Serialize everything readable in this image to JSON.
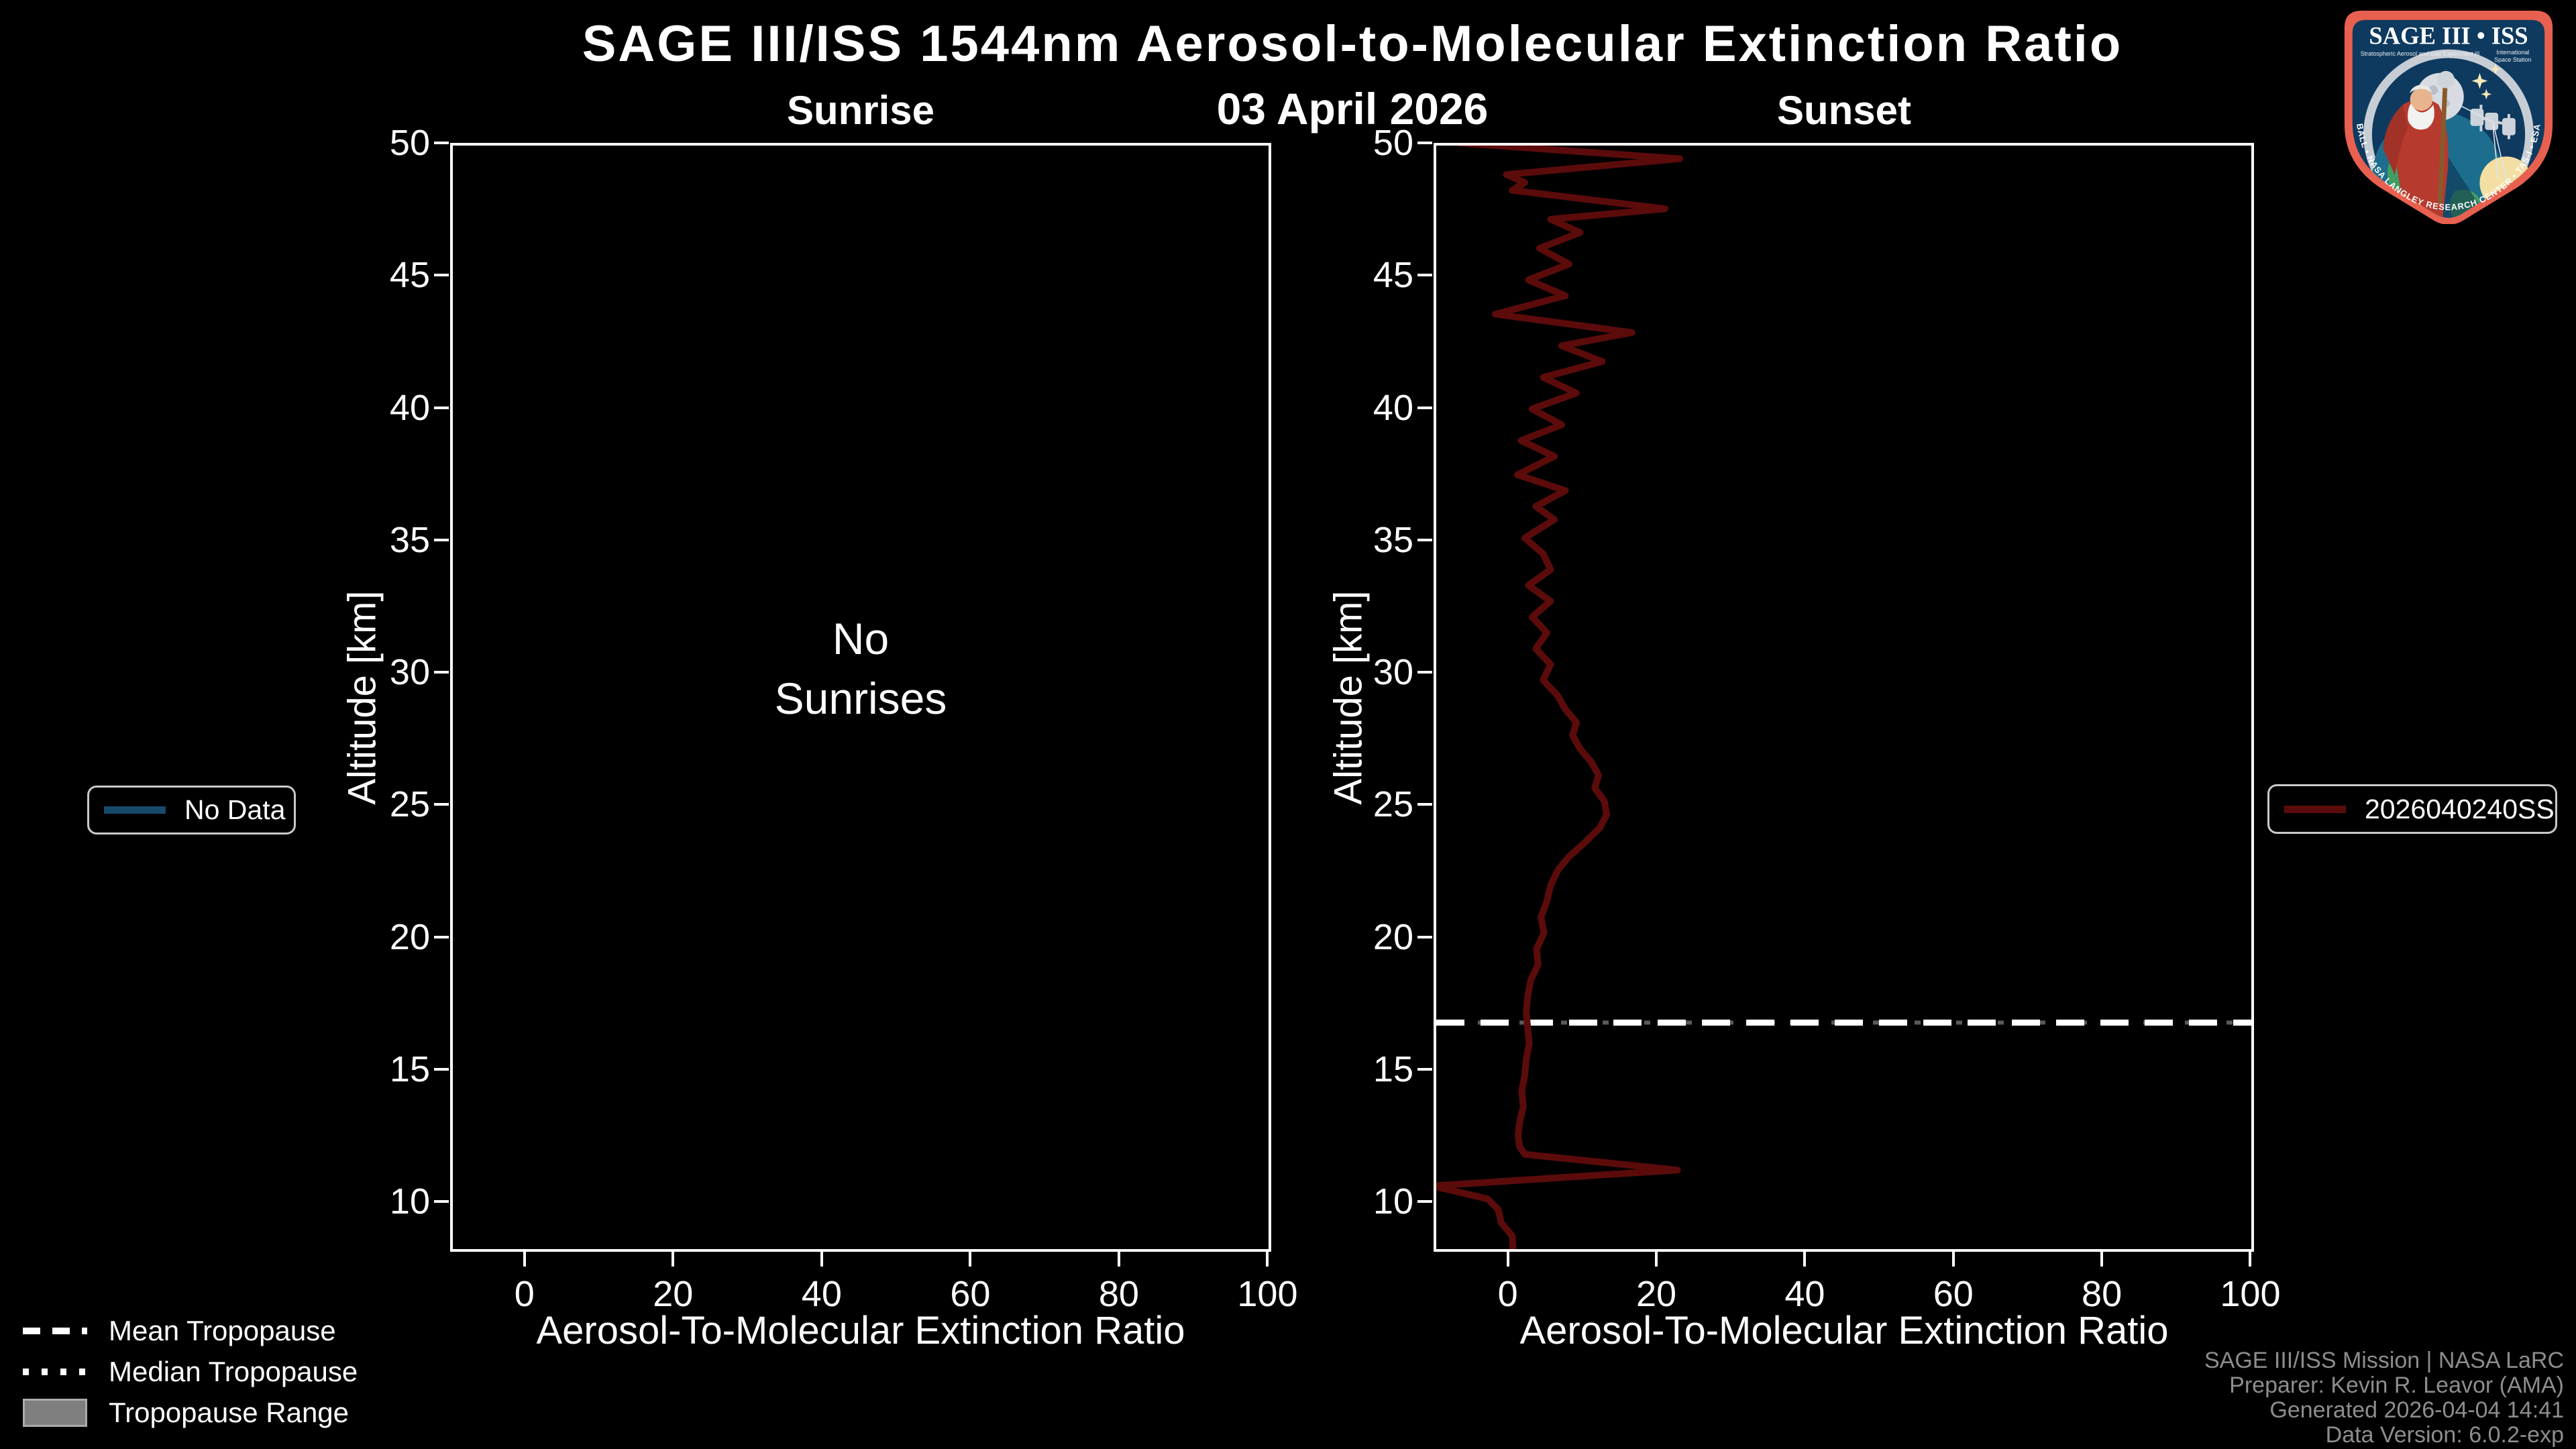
{
  "title": "SAGE III/ISS 1544nm Aerosol-to-Molecular Extinction Ratio",
  "date": "03 April 2026",
  "panels": {
    "sunrise": {
      "title": "Sunrise",
      "no_data_lines": [
        "No",
        "Sunrises"
      ]
    },
    "sunset": {
      "title": "Sunset"
    }
  },
  "axes": {
    "xlabel": "Aerosol-To-Molecular Extinction Ratio",
    "ylabel": "Altitude [km]",
    "xticks": [
      0,
      20,
      40,
      60,
      80,
      100
    ],
    "yticks": [
      10,
      15,
      20,
      25,
      30,
      35,
      40,
      45,
      50
    ],
    "xlim": [
      -10,
      100.5
    ],
    "ylim": [
      8.1,
      50
    ]
  },
  "legends": {
    "no_data": {
      "label": "No Data",
      "line_color": "#17496b"
    },
    "event": {
      "label": "2026040240SS",
      "line_color": "#5c0b0b"
    },
    "tropopause": [
      {
        "label": "Mean Tropopause",
        "style": "dashed"
      },
      {
        "label": "Median Tropopause",
        "style": "dotted"
      },
      {
        "label": "Tropopause Range",
        "style": "box"
      }
    ]
  },
  "footer": {
    "lines": [
      "SAGE III/ISS Mission | NASA LaRC",
      "Preparer: Kevin R. Leavor (AMA)",
      "Generated 2026-04-04 14:41",
      "Data Version: 6.0.2-exp"
    ]
  },
  "logo": {
    "title": "SAGE III • ISS",
    "subtitle_left": "Stratospheric Aerosol and Gas Experiment III",
    "subtitle_right_1": "International",
    "subtitle_right_2": "Space Station",
    "ring_text": "BALL • NASA LANGLEY RESEARCH CENTER • TAS-I • ESA"
  },
  "chart_data": {
    "type": "line",
    "title": "SAGE III/ISS 1544nm Aerosol-to-Molecular Extinction Ratio",
    "date": "03 April 2026",
    "xlabel": "Aerosol-To-Molecular Extinction Ratio",
    "ylabel": "Altitude [km]",
    "xlim": [
      -10,
      100.5
    ],
    "ylim": [
      8.1,
      50
    ],
    "xticks": [
      0,
      20,
      40,
      60,
      80,
      100
    ],
    "yticks": [
      10,
      15,
      20,
      25,
      30,
      35,
      40,
      45,
      50
    ],
    "grid": false,
    "panels": [
      {
        "name": "Sunrise",
        "annotation": "No Sunrises",
        "series": []
      },
      {
        "name": "Sunset",
        "mean_tropopause_km": 16.7,
        "series": [
          {
            "name": "2026040240SS",
            "color": "#5c0b0b",
            "points_format": "[extinction_ratio, altitude_km]",
            "points": [
              [
                -7,
                50.1
              ],
              [
                23,
                49.5
              ],
              [
                -0.5,
                48.9
              ],
              [
                2,
                48.6
              ],
              [
                0.3,
                48.3
              ],
              [
                21,
                47.6
              ],
              [
                5.5,
                47.2
              ],
              [
                9.5,
                46.7
              ],
              [
                4,
                46.1
              ],
              [
                8,
                45.5
              ],
              [
                2.5,
                44.9
              ],
              [
                7.5,
                44.3
              ],
              [
                -2,
                43.6
              ],
              [
                16.5,
                42.9
              ],
              [
                7,
                42.4
              ],
              [
                12.5,
                41.8
              ],
              [
                4.5,
                41.2
              ],
              [
                9,
                40.6
              ],
              [
                3,
                40
              ],
              [
                7,
                39.4
              ],
              [
                1.5,
                38.8
              ],
              [
                6,
                38.2
              ],
              [
                1,
                37.5
              ],
              [
                7.5,
                36.9
              ],
              [
                3.5,
                36.3
              ],
              [
                6,
                35.8
              ],
              [
                2,
                35.1
              ],
              [
                4.5,
                34.5
              ],
              [
                5.5,
                33.9
              ],
              [
                2.5,
                33.3
              ],
              [
                5.5,
                32.7
              ],
              [
                3,
                32.1
              ],
              [
                5,
                31.5
              ],
              [
                3.5,
                30.9
              ],
              [
                5.5,
                30.3
              ],
              [
                4.5,
                29.7
              ],
              [
                6.5,
                29.1
              ],
              [
                7.5,
                28.6
              ],
              [
                9,
                28.1
              ],
              [
                8.5,
                27.6
              ],
              [
                9.5,
                27.1
              ],
              [
                11,
                26.6
              ],
              [
                12,
                26.1
              ],
              [
                11.5,
                25.6
              ],
              [
                12.8,
                25.1
              ],
              [
                13.1,
                24.6
              ],
              [
                12.2,
                24.1
              ],
              [
                10,
                23.5
              ],
              [
                8,
                23
              ],
              [
                6.5,
                22.5
              ],
              [
                5.5,
                21.9
              ],
              [
                5,
                21.3
              ],
              [
                4.2,
                20.7
              ],
              [
                4.6,
                20.1
              ],
              [
                3.6,
                19.5
              ],
              [
                3.8,
                18.9
              ],
              [
                2.8,
                18.3
              ],
              [
                2.4,
                17.7
              ],
              [
                2.2,
                17.1
              ],
              [
                2.4,
                16.5
              ],
              [
                2.6,
                15.9
              ],
              [
                2.2,
                15.3
              ],
              [
                2,
                14.7
              ],
              [
                1.6,
                14.1
              ],
              [
                1.8,
                13.5
              ],
              [
                1.3,
                12.9
              ],
              [
                1.1,
                12.4
              ],
              [
                1.3,
                12
              ],
              [
                2,
                11.7
              ],
              [
                22.7,
                11.1
              ],
              [
                -10.5,
                10.5
              ],
              [
                -3,
                10
              ],
              [
                -1.6,
                9.6
              ],
              [
                -1.2,
                9.1
              ],
              [
                0.3,
                8.6
              ],
              [
                0.4,
                8.1
              ]
            ]
          }
        ]
      }
    ]
  }
}
